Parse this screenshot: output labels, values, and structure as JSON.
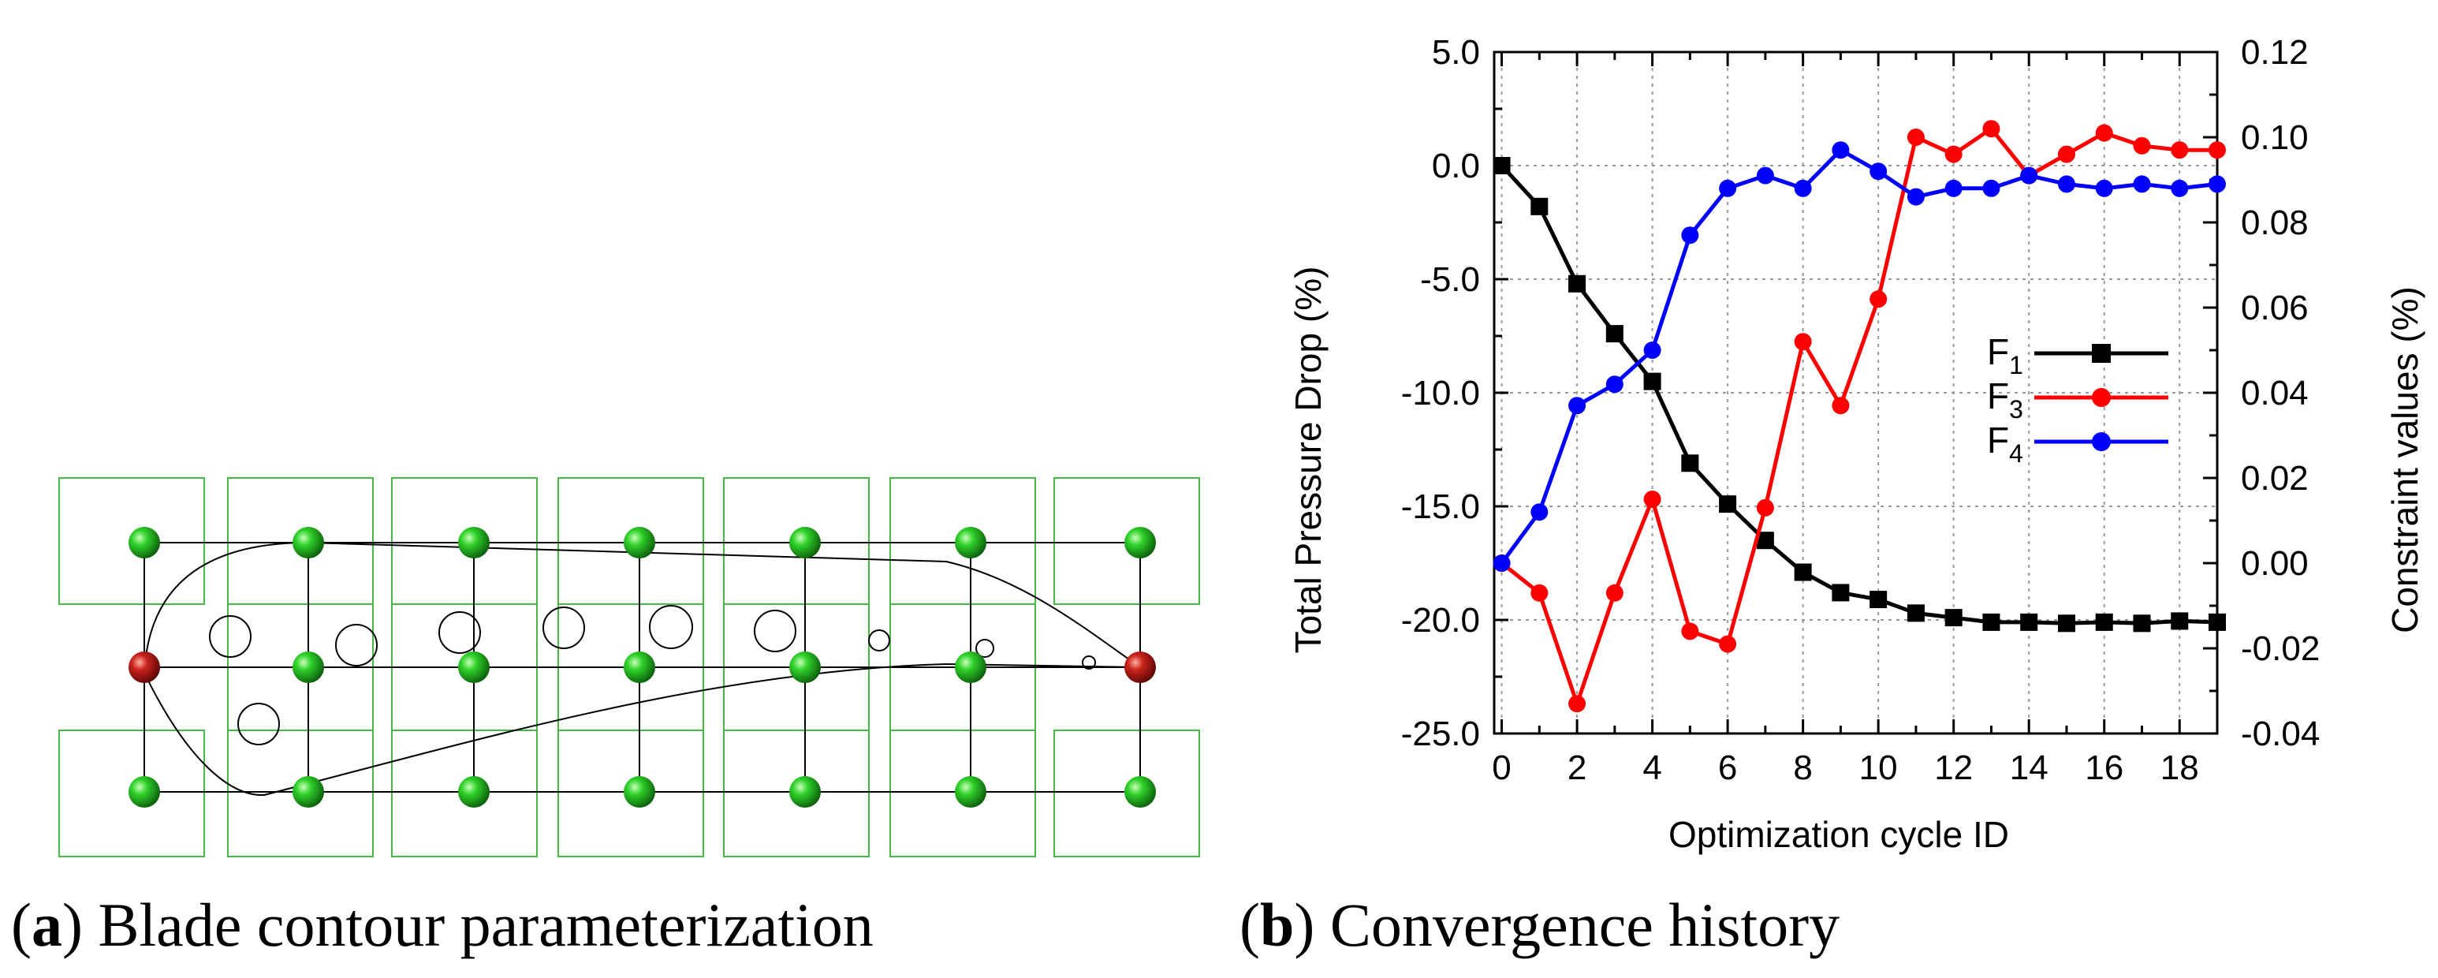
{
  "captions": {
    "a": {
      "letter": "a",
      "text": "Blade contour parameterization"
    },
    "b": {
      "letter": "b",
      "text": "Convergence history"
    }
  },
  "parameterization": {
    "grid_color": "#44b944",
    "cp_color": "#1faa1f",
    "fixed_cp_color": "#b81a1a",
    "cols": 7,
    "rows": 3
  },
  "chart_data": {
    "type": "line",
    "xlabel": "Optimization cycle ID",
    "ylabel": "Total Pressure Drop (%)",
    "y2label": "Constraint values (%)",
    "x": [
      0,
      1,
      2,
      3,
      4,
      5,
      6,
      7,
      8,
      9,
      10,
      11,
      12,
      13,
      14,
      15,
      16,
      17,
      18,
      19
    ],
    "xlim": [
      -0.2,
      19
    ],
    "ylim": [
      -25,
      5
    ],
    "y2lim": [
      -0.04,
      0.12
    ],
    "xticks": [
      "0",
      "2",
      "4",
      "6",
      "8",
      "10",
      "12",
      "14",
      "16",
      "18"
    ],
    "yticks": [
      "5.0",
      "0.0",
      "-5.0",
      "-10.0",
      "-15.0",
      "-20.0",
      "-25.0"
    ],
    "y2ticks": [
      "0.12",
      "0.10",
      "0.08",
      "0.06",
      "0.04",
      "0.02",
      "0.00",
      "-0.02",
      "-0.04"
    ],
    "grid": true,
    "legend_position": "right-middle",
    "series": [
      {
        "name": "F",
        "sub": "1",
        "axis": "left",
        "color": "#000000",
        "marker": "square",
        "values": [
          0.0,
          -1.8,
          -5.2,
          -7.4,
          -9.5,
          -13.1,
          -14.9,
          -16.5,
          -17.9,
          -18.8,
          -19.1,
          -19.7,
          -19.9,
          -20.1,
          -20.1,
          -20.15,
          -20.1,
          -20.15,
          -20.05,
          -20.1
        ]
      },
      {
        "name": "F",
        "sub": "3",
        "axis": "right",
        "color": "#ff0000",
        "marker": "circle",
        "values": [
          0.0,
          -0.007,
          -0.033,
          -0.007,
          0.015,
          -0.016,
          -0.019,
          0.013,
          0.052,
          0.037,
          0.062,
          0.1,
          0.096,
          0.102,
          0.091,
          0.096,
          0.101,
          0.098,
          0.097,
          0.097
        ]
      },
      {
        "name": "F",
        "sub": "4",
        "axis": "right",
        "color": "#0000ff",
        "marker": "circle",
        "values": [
          0.0,
          0.012,
          0.037,
          0.042,
          0.05,
          0.077,
          0.088,
          0.091,
          0.088,
          0.097,
          0.092,
          0.086,
          0.088,
          0.088,
          0.091,
          0.089,
          0.088,
          0.089,
          0.088,
          0.089
        ]
      }
    ]
  }
}
